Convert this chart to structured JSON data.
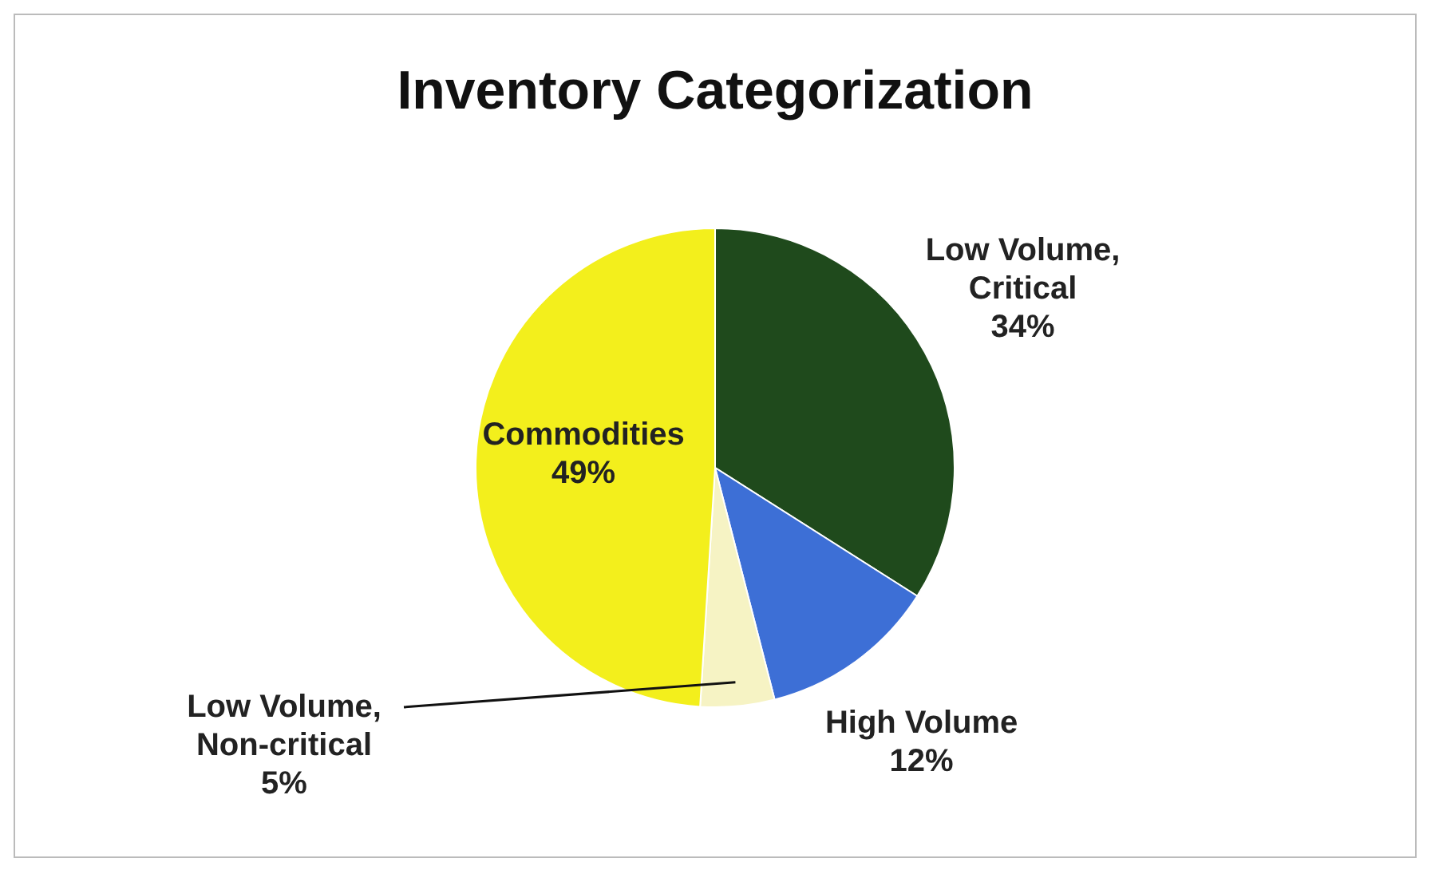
{
  "chart_data": {
    "type": "pie",
    "title": "Inventory Categorization",
    "categories": [
      "Low Volume, Critical",
      "High Volume",
      "Low Volume, Non-critical",
      "Commodities"
    ],
    "values": [
      34,
      12,
      5,
      49
    ],
    "colors": [
      "#1f4a1c",
      "#3d6fd6",
      "#f6f3c4",
      "#f3ef1c"
    ],
    "value_labels": [
      "34%",
      "12%",
      "5%",
      "49%"
    ]
  }
}
